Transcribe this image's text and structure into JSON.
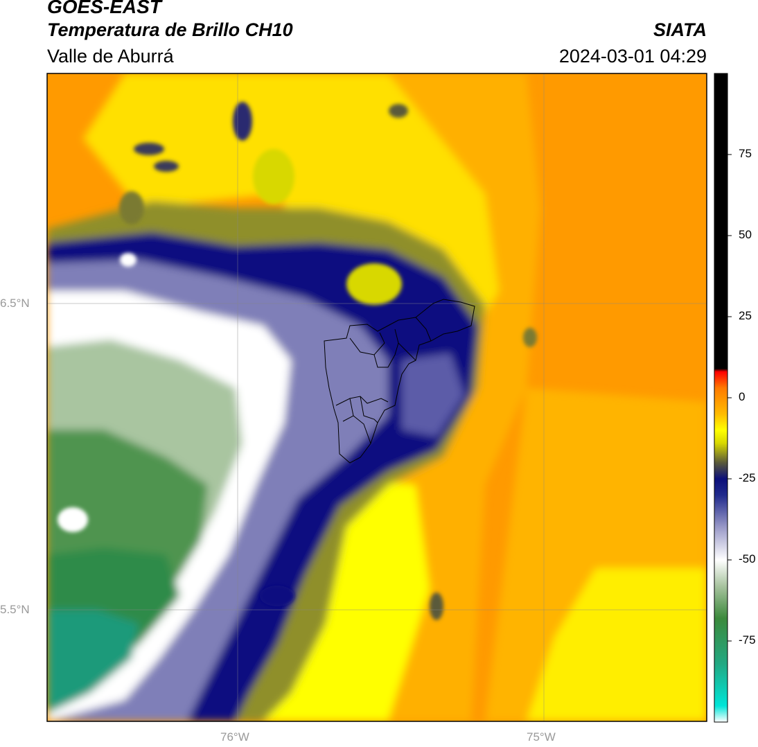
{
  "header": {
    "line1": "GOES-EAST",
    "line2": "Temperatura de Brillo CH10",
    "line3": "Valle de Aburrá",
    "org": "SIATA",
    "datetime": "2024-03-01 04:29"
  },
  "map": {
    "lat_labels": [
      "6.5°N",
      "5.5°N"
    ],
    "lon_labels": [
      "76°W",
      "75°W"
    ],
    "gridlines": true,
    "boundary": "Valle de Aburrá municipalities outline"
  },
  "colorbar": {
    "min": -100,
    "max": 100,
    "ticks": [
      75,
      50,
      25,
      0,
      -25,
      -50,
      -75
    ],
    "tick_labels": [
      "75",
      "50",
      "25",
      "0",
      "-25",
      "-50",
      "-75"
    ],
    "stops": [
      {
        "v": -100,
        "c": "#ffffff"
      },
      {
        "v": -95,
        "c": "#00e5d8"
      },
      {
        "v": -82,
        "c": "#22a882"
      },
      {
        "v": -68,
        "c": "#3c8a3c"
      },
      {
        "v": -58,
        "c": "#a9c4a0"
      },
      {
        "v": -50,
        "c": "#ffffff"
      },
      {
        "v": -40,
        "c": "#9a9ac8"
      },
      {
        "v": -30,
        "c": "#202a8c"
      },
      {
        "v": -25,
        "c": "#0b0f7a"
      },
      {
        "v": -20,
        "c": "#5a5a3a"
      },
      {
        "v": -14,
        "c": "#d8d800"
      },
      {
        "v": -10,
        "c": "#ffff00"
      },
      {
        "v": -5,
        "c": "#ffbb00"
      },
      {
        "v": 3,
        "c": "#ff7a00"
      },
      {
        "v": 8,
        "c": "#ff0000"
      },
      {
        "v": 9,
        "c": "#000000"
      },
      {
        "v": 100,
        "c": "#000000"
      }
    ]
  }
}
